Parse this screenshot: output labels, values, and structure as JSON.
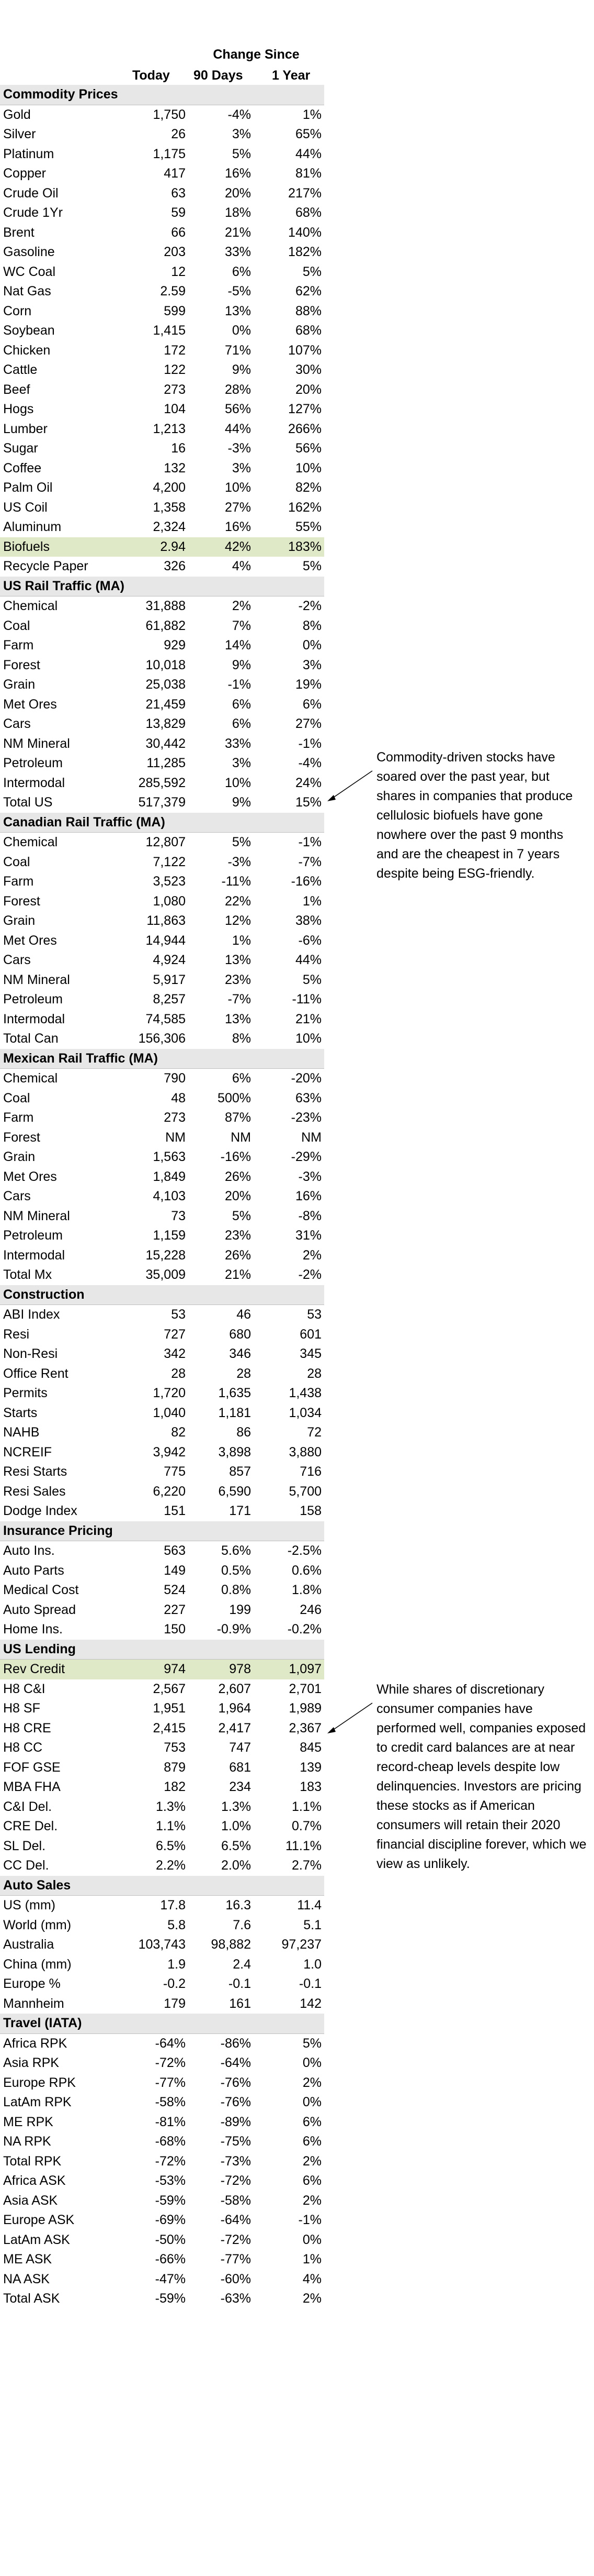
{
  "header": {
    "change_since": "Change Since",
    "col_today": "Today",
    "col_90d": "90 Days",
    "col_1y": "1 Year"
  },
  "sections": [
    {
      "title": "Commodity Prices",
      "rows": [
        [
          "Gold",
          "1,750",
          "-4%",
          "1%"
        ],
        [
          "Silver",
          "26",
          "3%",
          "65%"
        ],
        [
          "Platinum",
          "1,175",
          "5%",
          "44%"
        ],
        [
          "Copper",
          "417",
          "16%",
          "81%"
        ],
        [
          "Crude Oil",
          "63",
          "20%",
          "217%"
        ],
        [
          "Crude 1Yr",
          "59",
          "18%",
          "68%"
        ],
        [
          "Brent",
          "66",
          "21%",
          "140%"
        ],
        [
          "Gasoline",
          "203",
          "33%",
          "182%"
        ],
        [
          "WC Coal",
          "12",
          "6%",
          "5%"
        ],
        [
          "Nat Gas",
          "2.59",
          "-5%",
          "62%"
        ],
        [
          "Corn",
          "599",
          "13%",
          "88%"
        ],
        [
          "Soybean",
          "1,415",
          "0%",
          "68%"
        ],
        [
          "Chicken",
          "172",
          "71%",
          "107%"
        ],
        [
          "Cattle",
          "122",
          "9%",
          "30%"
        ],
        [
          "Beef",
          "273",
          "28%",
          "20%"
        ],
        [
          "Hogs",
          "104",
          "56%",
          "127%"
        ],
        [
          "Lumber",
          "1,213",
          "44%",
          "266%"
        ],
        [
          "Sugar",
          "16",
          "-3%",
          "56%"
        ],
        [
          "Coffee",
          "132",
          "3%",
          "10%"
        ],
        [
          "Palm Oil",
          "4,200",
          "10%",
          "82%"
        ],
        [
          "US Coil",
          "1,358",
          "27%",
          "162%"
        ],
        [
          "Aluminum",
          "2,324",
          "16%",
          "55%"
        ],
        [
          "Biofuels",
          "2.94",
          "42%",
          "183%"
        ],
        [
          "Recycle Paper",
          "326",
          "4%",
          "5%"
        ]
      ]
    },
    {
      "title": "US Rail Traffic (MA)",
      "rows": [
        [
          "Chemical",
          "31,888",
          "2%",
          "-2%"
        ],
        [
          "Coal",
          "61,882",
          "7%",
          "8%"
        ],
        [
          "Farm",
          "929",
          "14%",
          "0%"
        ],
        [
          "Forest",
          "10,018",
          "9%",
          "3%"
        ],
        [
          "Grain",
          "25,038",
          "-1%",
          "19%"
        ],
        [
          "Met Ores",
          "21,459",
          "6%",
          "6%"
        ],
        [
          "Cars",
          "13,829",
          "6%",
          "27%"
        ],
        [
          "NM Mineral",
          "30,442",
          "33%",
          "-1%"
        ],
        [
          "Petroleum",
          "11,285",
          "3%",
          "-4%"
        ],
        [
          "Intermodal",
          "285,592",
          "10%",
          "24%"
        ],
        [
          "Total US",
          "517,379",
          "9%",
          "15%"
        ]
      ]
    },
    {
      "title": "Canadian Rail Traffic (MA)",
      "rows": [
        [
          "Chemical",
          "12,807",
          "5%",
          "-1%"
        ],
        [
          "Coal",
          "7,122",
          "-3%",
          "-7%"
        ],
        [
          "Farm",
          "3,523",
          "-11%",
          "-16%"
        ],
        [
          "Forest",
          "1,080",
          "22%",
          "1%"
        ],
        [
          "Grain",
          "11,863",
          "12%",
          "38%"
        ],
        [
          "Met Ores",
          "14,944",
          "1%",
          "-6%"
        ],
        [
          "Cars",
          "4,924",
          "13%",
          "44%"
        ],
        [
          "NM Mineral",
          "5,917",
          "23%",
          "5%"
        ],
        [
          "Petroleum",
          "8,257",
          "-7%",
          "-11%"
        ],
        [
          "Intermodal",
          "74,585",
          "13%",
          "21%"
        ],
        [
          "Total Can",
          "156,306",
          "8%",
          "10%"
        ]
      ]
    },
    {
      "title": "Mexican Rail Traffic (MA)",
      "rows": [
        [
          "Chemical",
          "790",
          "6%",
          "-20%"
        ],
        [
          "Coal",
          "48",
          "500%",
          "63%"
        ],
        [
          "Farm",
          "273",
          "87%",
          "-23%"
        ],
        [
          "Forest",
          "NM",
          "NM",
          "NM"
        ],
        [
          "Grain",
          "1,563",
          "-16%",
          "-29%"
        ],
        [
          "Met Ores",
          "1,849",
          "26%",
          "-3%"
        ],
        [
          "Cars",
          "4,103",
          "20%",
          "16%"
        ],
        [
          "NM Mineral",
          "73",
          "5%",
          "-8%"
        ],
        [
          "Petroleum",
          "1,159",
          "23%",
          "31%"
        ],
        [
          "Intermodal",
          "15,228",
          "26%",
          "2%"
        ],
        [
          "Total Mx",
          "35,009",
          "21%",
          "-2%"
        ]
      ]
    },
    {
      "title": "Construction",
      "rows": [
        [
          "ABI Index",
          "53",
          "46",
          "53"
        ],
        [
          "Resi",
          "727",
          "680",
          "601"
        ],
        [
          "Non-Resi",
          "342",
          "346",
          "345"
        ],
        [
          "Office Rent",
          "28",
          "28",
          "28"
        ],
        [
          "Permits",
          "1,720",
          "1,635",
          "1,438"
        ],
        [
          "Starts",
          "1,040",
          "1,181",
          "1,034"
        ],
        [
          "NAHB",
          "82",
          "86",
          "72"
        ],
        [
          "NCREIF",
          "3,942",
          "3,898",
          "3,880"
        ],
        [
          "Resi Starts",
          "775",
          "857",
          "716"
        ],
        [
          "Resi Sales",
          "6,220",
          "6,590",
          "5,700"
        ],
        [
          "Dodge Index",
          "151",
          "171",
          "158"
        ]
      ]
    },
    {
      "title": "Insurance Pricing",
      "rows": [
        [
          "Auto Ins.",
          "563",
          "5.6%",
          "-2.5%"
        ],
        [
          "Auto Parts",
          "149",
          "0.5%",
          "0.6%"
        ],
        [
          "Medical Cost",
          "524",
          "0.8%",
          "1.8%"
        ],
        [
          "Auto Spread",
          "227",
          "199",
          "246"
        ],
        [
          "Home Ins.",
          "150",
          "-0.9%",
          "-0.2%"
        ]
      ]
    },
    {
      "title": "US Lending",
      "rows": [
        [
          "Rev Credit",
          "974",
          "978",
          "1,097"
        ],
        [
          "H8 C&I",
          "2,567",
          "2,607",
          "2,701"
        ],
        [
          "H8 SF",
          "1,951",
          "1,964",
          "1,989"
        ],
        [
          "H8 CRE",
          "2,415",
          "2,417",
          "2,367"
        ],
        [
          "H8 CC",
          "753",
          "747",
          "845"
        ],
        [
          "FOF GSE",
          "879",
          "681",
          "139"
        ],
        [
          "MBA FHA",
          "182",
          "234",
          "183"
        ],
        [
          "C&I Del.",
          "1.3%",
          "1.3%",
          "1.1%"
        ],
        [
          "CRE Del.",
          "1.1%",
          "1.0%",
          "0.7%"
        ],
        [
          "SL Del.",
          "6.5%",
          "6.5%",
          "11.1%"
        ],
        [
          "CC Del.",
          "2.2%",
          "2.0%",
          "2.7%"
        ]
      ]
    },
    {
      "title": "Auto Sales",
      "rows": [
        [
          "US (mm)",
          "17.8",
          "16.3",
          "11.4"
        ],
        [
          "World (mm)",
          "5.8",
          "7.6",
          "5.1"
        ],
        [
          "Australia",
          "103,743",
          "98,882",
          "97,237"
        ],
        [
          "China (mm)",
          "1.9",
          "2.4",
          "1.0"
        ],
        [
          "Europe %",
          "-0.2",
          "-0.1",
          "-0.1"
        ],
        [
          "Mannheim",
          "179",
          "161",
          "142"
        ]
      ]
    },
    {
      "title": "Travel (IATA)",
      "rows": [
        [
          "Africa RPK",
          "-64%",
          "-86%",
          "5%"
        ],
        [
          "Asia RPK",
          "-72%",
          "-64%",
          "0%"
        ],
        [
          "Europe RPK",
          "-77%",
          "-76%",
          "2%"
        ],
        [
          "LatAm RPK",
          "-58%",
          "-76%",
          "0%"
        ],
        [
          "ME RPK",
          "-81%",
          "-89%",
          "6%"
        ],
        [
          "NA RPK",
          "-68%",
          "-75%",
          "6%"
        ],
        [
          "Total RPK",
          "-72%",
          "-73%",
          "2%"
        ],
        [
          "Africa ASK",
          "-53%",
          "-72%",
          "6%"
        ],
        [
          "Asia ASK",
          "-59%",
          "-58%",
          "2%"
        ],
        [
          "Europe ASK",
          "-69%",
          "-64%",
          "-1%"
        ],
        [
          "LatAm ASK",
          "-50%",
          "-72%",
          "0%"
        ],
        [
          "ME ASK",
          "-66%",
          "-77%",
          "1%"
        ],
        [
          "NA ASK",
          "-47%",
          "-60%",
          "4%"
        ],
        [
          "Total ASK",
          "-59%",
          "-63%",
          "2%"
        ]
      ]
    }
  ],
  "highlighted_rows": [
    "Biofuels",
    "Rev Credit"
  ],
  "highlight_color": "#dfe9c8",
  "notes": [
    {
      "text": "Commodity-driven stocks have soared over the past year, but shares in companies that produce cellulosic biofuels have gone nowhere over the past 9 months and are the cheapest in 7 years despite being ESG-friendly."
    },
    {
      "text": "While shares of discretionary consumer companies have performed well, companies exposed to credit card balances are at near record-cheap levels despite low delinquencies. Investors are pricing these stocks as if American consumers will retain their 2020 financial discipline forever, which we view as unlikely."
    }
  ]
}
